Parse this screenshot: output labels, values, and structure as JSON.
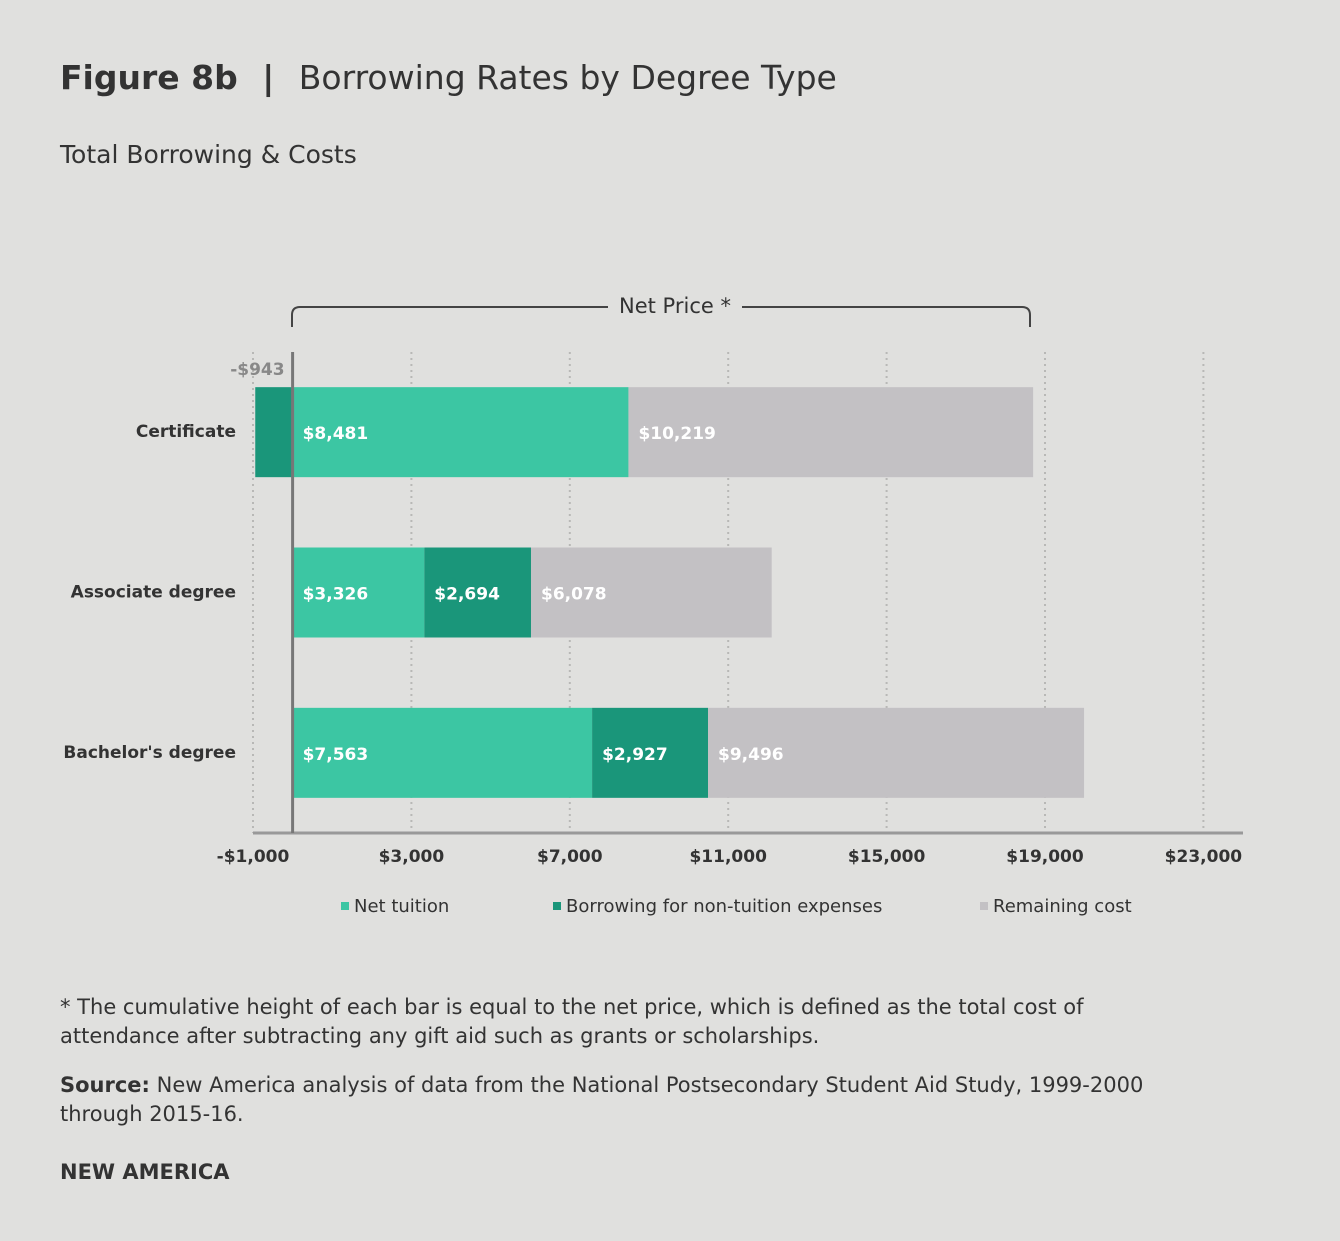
{
  "header": {
    "figure": "Figure 8b",
    "separator": "|",
    "title": "Borrowing Rates by Degree Type",
    "subtitle": "Total Borrowing & Costs"
  },
  "chart_data": {
    "type": "stacked-bar-horizontal",
    "categories": [
      "Certificate",
      "Associate degree",
      "Bachelor's degree"
    ],
    "series": [
      {
        "name": "Net tuition",
        "color": "#3cc6a3",
        "values": [
          8481,
          3326,
          7563
        ],
        "value_labels": [
          "$8,481",
          "$3,326",
          "$7,563"
        ]
      },
      {
        "name": "Borrowing for non-tuition expenses",
        "color": "#1a967a",
        "values": [
          -943,
          2694,
          2927
        ],
        "value_labels": [
          "-$943",
          "$2,694",
          "$2,927"
        ]
      },
      {
        "name": "Remaining cost",
        "color": "#c3c1c4",
        "values": [
          10219,
          6078,
          9496
        ],
        "value_labels": [
          "$10,219",
          "$6,078",
          "$9,496"
        ]
      }
    ],
    "xlim": [
      -1000,
      24000
    ],
    "xticks": [
      {
        "value": -1000,
        "label": "-$1,000"
      },
      {
        "value": 3000,
        "label": "$3,000"
      },
      {
        "value": 7000,
        "label": "$7,000"
      },
      {
        "value": 11000,
        "label": "$11,000"
      },
      {
        "value": 15000,
        "label": "$15,000"
      },
      {
        "value": 19000,
        "label": "$19,000"
      },
      {
        "value": 23000,
        "label": "$23,000"
      }
    ],
    "grid": true,
    "annotation": "Net Price *"
  },
  "notes": {
    "footnote": "* The cumulative height of each bar is equal to the net price, which is defined as the total cost of attendance after subtracting any gift aid such as grants or scholarships.",
    "source_label": "Source:",
    "source": "New America analysis of data from the National Postsecondary Student Aid Study, 1999-2000 through 2015-16.",
    "brand": "NEW AMERICA"
  }
}
